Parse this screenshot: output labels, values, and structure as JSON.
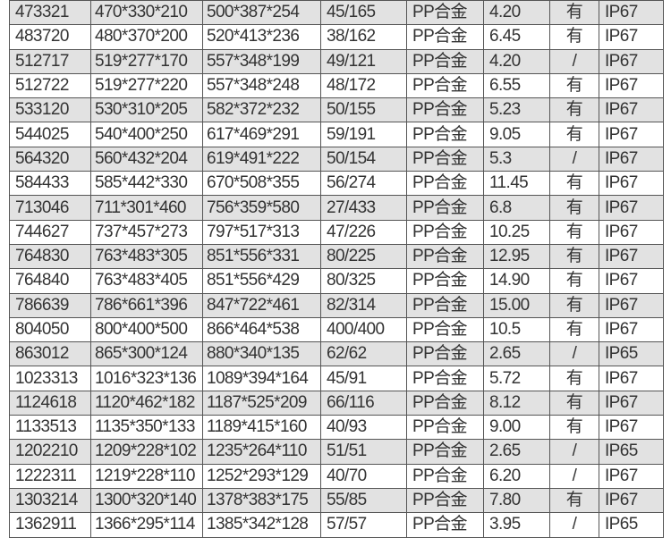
{
  "table": {
    "rows": [
      [
        "473321",
        "470*330*210",
        "500*387*254",
        "45/165",
        "PP合金",
        "4.20",
        "有",
        "IP67"
      ],
      [
        "483720",
        "480*370*200",
        "520*413*236",
        "38/162",
        "PP合金",
        "6.45",
        "有",
        "IP67"
      ],
      [
        "512717",
        "519*277*170",
        "557*348*199",
        "49/121",
        "PP合金",
        "4.20",
        "/",
        "IP67"
      ],
      [
        "512722",
        "519*277*220",
        "557*348*248",
        "48/172",
        "PP合金",
        "6.55",
        "有",
        "IP67"
      ],
      [
        "533120",
        "530*310*205",
        "582*372*232",
        "50/155",
        "PP合金",
        "5.23",
        "有",
        "IP67"
      ],
      [
        "544025",
        "540*400*250",
        "617*469*291",
        "59/191",
        "PP合金",
        "9.05",
        "有",
        "IP67"
      ],
      [
        "564320",
        "560*432*204",
        "619*491*222",
        "50/154",
        "PP合金",
        "5.3",
        "/",
        "IP67"
      ],
      [
        "584433",
        "585*442*330",
        "670*508*355",
        "56/274",
        "PP合金",
        "11.45",
        "有",
        "IP67"
      ],
      [
        "713046",
        "711*301*460",
        "756*359*580",
        "27/433",
        "PP合金",
        "6.8",
        "有",
        "IP67"
      ],
      [
        "744627",
        "737*457*273",
        "797*517*313",
        "47/226",
        "PP合金",
        "10.25",
        "有",
        "IP67"
      ],
      [
        "764830",
        "763*483*305",
        "851*556*331",
        "80/225",
        "PP合金",
        "12.95",
        "有",
        "IP67"
      ],
      [
        "764840",
        "763*483*405",
        "851*556*429",
        "80/325",
        "PP合金",
        "14.90",
        "有",
        "IP67"
      ],
      [
        "786639",
        "786*661*396",
        "847*722*461",
        "82/314",
        "PP合金",
        "15.00",
        "有",
        "IP67"
      ],
      [
        "804050",
        "800*400*500",
        "866*464*538",
        "400/400",
        "PP合金",
        "10.5",
        "有",
        "IP67"
      ],
      [
        "863012",
        "865*300*124",
        "880*340*135",
        "62/62",
        "PP合金",
        "2.65",
        "/",
        "IP65"
      ],
      [
        "1023313",
        "1016*323*136",
        "1089*394*164",
        "45/91",
        "PP合金",
        "5.72",
        "有",
        "IP67"
      ],
      [
        "1124618",
        "1120*462*182",
        "1187*525*209",
        "66/116",
        "PP合金",
        "8.12",
        "有",
        "IP67"
      ],
      [
        "1133513",
        "1135*350*133",
        "1189*415*160",
        "40/93",
        "PP合金",
        "9.00",
        "有",
        "IP67"
      ],
      [
        "1202210",
        "1209*228*102",
        "1235*264*110",
        "51/51",
        "PP合金",
        "2.65",
        "/",
        "IP65"
      ],
      [
        "1222311",
        "1219*228*110",
        "1252*293*129",
        "40/70",
        "PP合金",
        "6.20",
        "/",
        "IP67"
      ],
      [
        "1303214",
        "1300*320*140",
        "1378*383*175",
        "55/85",
        "PP合金",
        "7.80",
        "有",
        "IP67"
      ],
      [
        "1362911",
        "1366*295*114",
        "1385*342*128",
        "57/57",
        "PP合金",
        "3.95",
        "/",
        "IP65"
      ]
    ]
  }
}
